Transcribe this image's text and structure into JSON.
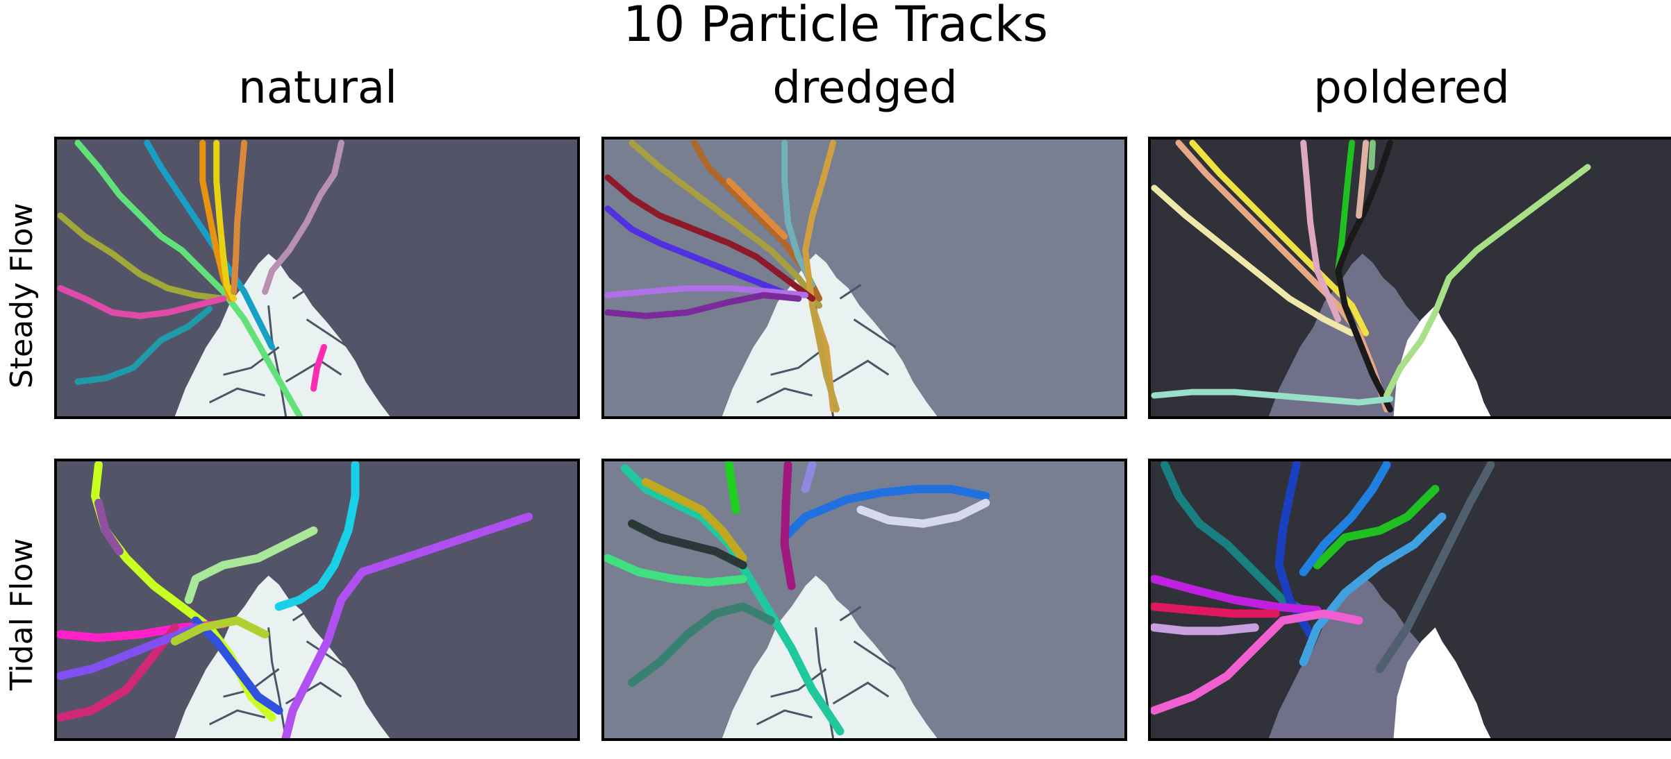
{
  "figure": {
    "title": "10 Particle Tracks",
    "columns": [
      "natural",
      "dredged",
      "poldered"
    ],
    "rows": [
      "Steady Flow",
      "Tidal Flow"
    ]
  },
  "colors": {
    "natural_bg": "#545468",
    "dredged_bg": "#777f91",
    "poldered_bg": "#313139",
    "delta": "#e9f1f1",
    "delta_dim": "#70708a",
    "polder": "#ffffff"
  },
  "tracks": {
    "natural_steady": [
      "#62e07a",
      "#18a0c4",
      "#e8920f",
      "#e8d012",
      "#d88a3a",
      "#a0a83a",
      "#e04aa8",
      "#1f9aa8",
      "#b890b0",
      "#ff2bb0"
    ],
    "dredged_steady": [
      "#a8a040",
      "#b06828",
      "#70b0b8",
      "#d0a040",
      "#8c1a2a",
      "#5030e0",
      "#b070e8",
      "#7a2a9a",
      "#c0a040",
      "#e08a40"
    ],
    "poldered_steady": [
      "#f0e8a8",
      "#e8a888",
      "#f0e040",
      "#e0a8c0",
      "#20c020",
      "#1a1a1a",
      "#a8e088",
      "#98e0c8",
      "#e0b0a0",
      "#80c080"
    ],
    "natural_tidal": [
      "#c8ff20",
      "#b050f0",
      "#1ad0e8",
      "#a8e898",
      "#ff20c8",
      "#3050e0",
      "#d02878",
      "#8050f0",
      "#9050a0",
      "#b0d030"
    ],
    "dredged_tidal": [
      "#20c8a0",
      "#c0a820",
      "#2a3838",
      "#40e080",
      "#2070e0",
      "#d8d8f0",
      "#3a8070",
      "#a01880",
      "#20d020",
      "#9088e0"
    ],
    "poldered_tidal": [
      "#188080",
      "#1a40c0",
      "#20c020",
      "#40a0e0",
      "#506070",
      "#c020e0",
      "#e01860",
      "#c8a0e0",
      "#f060d0",
      "#2080e0"
    ]
  }
}
